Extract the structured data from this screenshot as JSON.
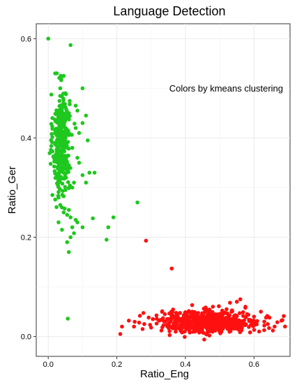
{
  "chart_data": {
    "type": "scatter",
    "title": "Language Detection",
    "xlabel": "Ratio_Eng",
    "ylabel": "Ratio_Ger",
    "annotation": "Colors by kmeans clustering",
    "xlim": [
      -0.035,
      0.705
    ],
    "ylim": [
      -0.04,
      0.63
    ],
    "x_ticks": [
      0.0,
      0.2,
      0.4,
      0.6
    ],
    "x_tick_labels": [
      "0.0",
      "0.2",
      "0.4",
      "0.6"
    ],
    "y_ticks": [
      0.0,
      0.2,
      0.4,
      0.6
    ],
    "y_tick_labels": [
      "0.0",
      "0.2",
      "0.4",
      "0.6"
    ],
    "grid": true,
    "series": [
      {
        "color": "#1ec81e",
        "points": [
          [
            0.0,
            0.6
          ],
          [
            0.065,
            0.587
          ],
          [
            0.02,
            0.53
          ],
          [
            0.045,
            0.525
          ],
          [
            0.1,
            0.5
          ],
          [
            0.05,
            0.49
          ],
          [
            0.08,
            0.465
          ],
          [
            0.085,
            0.455
          ],
          [
            0.11,
            0.445
          ],
          [
            0.06,
            0.45
          ],
          [
            0.1,
            0.43
          ],
          [
            0.012,
            0.44
          ],
          [
            0.08,
            0.42
          ],
          [
            0.09,
            0.41
          ],
          [
            0.115,
            0.395
          ],
          [
            0.07,
            0.38
          ],
          [
            0.085,
            0.36
          ],
          [
            0.06,
            0.345
          ],
          [
            0.09,
            0.35
          ],
          [
            0.12,
            0.33
          ],
          [
            0.135,
            0.33
          ],
          [
            0.1,
            0.325
          ],
          [
            0.11,
            0.31
          ],
          [
            0.075,
            0.31
          ],
          [
            0.05,
            0.295
          ],
          [
            0.07,
            0.3
          ],
          [
            0.012,
            0.285
          ],
          [
            0.03,
            0.28
          ],
          [
            0.035,
            0.265
          ],
          [
            0.04,
            0.26
          ],
          [
            0.06,
            0.255
          ],
          [
            0.045,
            0.25
          ],
          [
            0.055,
            0.245
          ],
          [
            0.065,
            0.24
          ],
          [
            0.08,
            0.235
          ],
          [
            0.13,
            0.238
          ],
          [
            0.085,
            0.23
          ],
          [
            0.03,
            0.23
          ],
          [
            0.04,
            0.215
          ],
          [
            0.07,
            0.22
          ],
          [
            0.1,
            0.22
          ],
          [
            0.075,
            0.208
          ],
          [
            0.055,
            0.19
          ],
          [
            0.065,
            0.2
          ],
          [
            0.06,
            0.17
          ],
          [
            0.19,
            0.24
          ],
          [
            0.175,
            0.22
          ],
          [
            0.17,
            0.195
          ],
          [
            0.26,
            0.27
          ],
          [
            0.057,
            0.036
          ],
          [
            0.03,
            0.45
          ],
          [
            0.035,
            0.5
          ],
          [
            0.02,
            0.41
          ]
        ]
      },
      {
        "color": "#ff1010",
        "points": [
          [
            0.285,
            0.193
          ],
          [
            0.36,
            0.137
          ],
          [
            0.21,
            0.005
          ],
          [
            0.215,
            0.02
          ],
          [
            0.235,
            0.032
          ],
          [
            0.25,
            0.02
          ],
          [
            0.265,
            0.028
          ],
          [
            0.275,
            0.015
          ],
          [
            0.28,
            0.025
          ],
          [
            0.3,
            0.018
          ],
          [
            0.305,
            0.035
          ],
          [
            0.33,
            0.012
          ],
          [
            0.34,
            0.045
          ],
          [
            0.355,
            0.035
          ],
          [
            0.37,
            0.02
          ],
          [
            0.4,
            0.03
          ],
          [
            0.42,
            0.05
          ],
          [
            0.45,
            0.035
          ],
          [
            0.47,
            0.002
          ],
          [
            0.48,
            0.06
          ],
          [
            0.5,
            0.045
          ],
          [
            0.52,
            0.055
          ],
          [
            0.53,
            0.068
          ],
          [
            0.55,
            0.07
          ],
          [
            0.56,
            0.075
          ],
          [
            0.575,
            0.06
          ],
          [
            0.58,
            0.045
          ],
          [
            0.6,
            0.04
          ],
          [
            0.62,
            0.05
          ],
          [
            0.63,
            0.03
          ],
          [
            0.64,
            0.025
          ],
          [
            0.66,
            0.02
          ],
          [
            0.68,
            0.032
          ],
          [
            0.655,
            0.012
          ],
          [
            0.615,
            0.01
          ],
          [
            0.645,
            0.038
          ],
          [
            0.46,
            0.005
          ],
          [
            0.5,
            0.01
          ],
          [
            0.44,
            0.008
          ]
        ]
      }
    ]
  }
}
